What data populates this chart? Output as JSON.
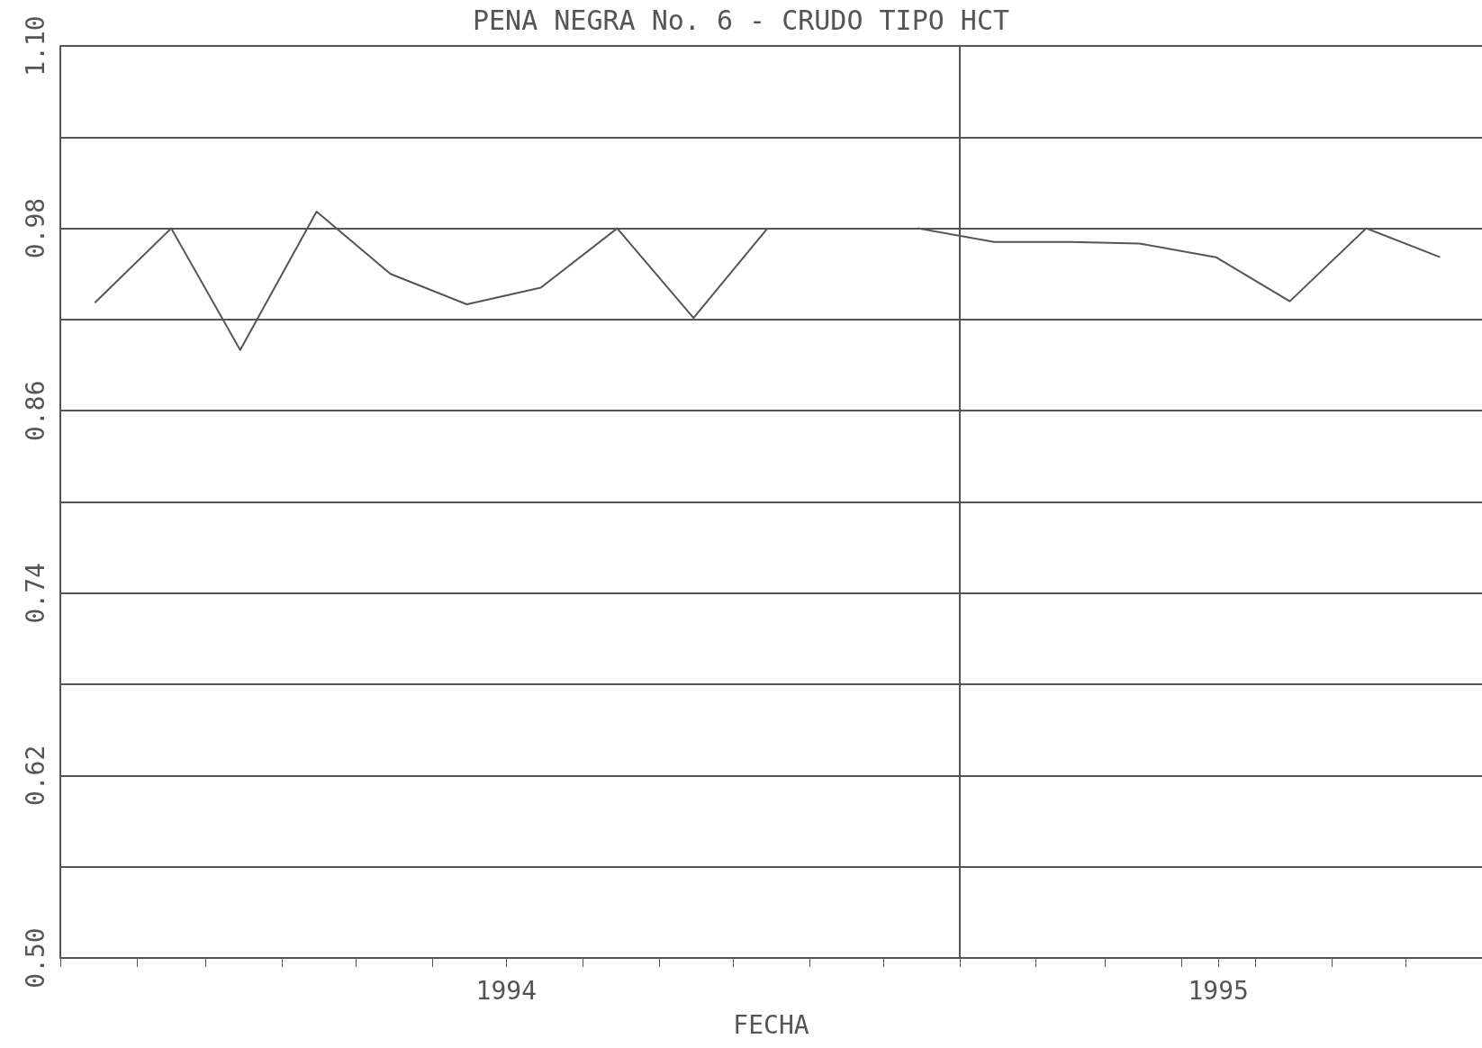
{
  "chart_data": {
    "type": "line",
    "title": "PENA NEGRA No. 6 - CRUDO TIPO HCT",
    "xlabel": "FECHA",
    "x": [
      "1994-01-15",
      "1994-02-15",
      "1994-03-15",
      "1994-04-15",
      "1994-05-15",
      "1994-06-15",
      "1994-07-15",
      "1994-08-15",
      "1994-09-15",
      "1994-10-15",
      "1994-11-15",
      "1994-12-15",
      "1995-01-15",
      "1995-02-15",
      "1995-03-15",
      "1995-04-15",
      "1995-05-15",
      "1995-06-15",
      "1995-07-15"
    ],
    "series": [
      {
        "color": "#555555",
        "values": [
          0.931,
          0.98,
          0.9,
          0.991,
          0.95,
          0.93,
          0.941,
          0.98,
          0.921,
          0.98,
          null,
          0.98,
          0.971,
          0.971,
          0.97,
          0.961,
          0.932,
          0.98,
          0.961
        ]
      }
    ],
    "xlim": [
      "1994-01-01",
      "1995-08-01"
    ],
    "xticks": [
      {
        "value": "1994-01-01",
        "label": null
      },
      {
        "value": "1994-02-01",
        "label": null
      },
      {
        "value": "1994-03-01",
        "label": null
      },
      {
        "value": "1994-04-01",
        "label": null
      },
      {
        "value": "1994-05-01",
        "label": null
      },
      {
        "value": "1994-06-01",
        "label": null
      },
      {
        "value": "1994-07-01",
        "label": "1994"
      },
      {
        "value": "1994-08-01",
        "label": null
      },
      {
        "value": "1994-09-01",
        "label": null
      },
      {
        "value": "1994-10-01",
        "label": null
      },
      {
        "value": "1994-11-01",
        "label": null
      },
      {
        "value": "1994-12-01",
        "label": null
      },
      {
        "value": "1995-01-01",
        "label": null
      },
      {
        "value": "1995-02-01",
        "label": null
      },
      {
        "value": "1995-03-01",
        "label": null
      },
      {
        "value": "1995-04-01",
        "label": null
      },
      {
        "value": "1995-04-16",
        "label": "1995"
      },
      {
        "value": "1995-05-01",
        "label": null
      },
      {
        "value": "1995-06-01",
        "label": null
      },
      {
        "value": "1995-07-01",
        "label": null
      },
      {
        "value": "1995-08-01",
        "label": null
      }
    ],
    "ylim": [
      0.5,
      1.1
    ],
    "yticks": [
      {
        "value": 0.5,
        "label": "0.50"
      },
      {
        "value": 0.56,
        "label": null
      },
      0.62,
      {
        "value": 0.68,
        "label": null
      },
      0.74,
      {
        "value": 0.8,
        "label": null
      },
      0.86,
      {
        "value": 0.92,
        "label": null
      },
      0.98,
      {
        "value": 1.04,
        "label": null
      },
      {
        "value": 1.1,
        "label": "1.10"
      }
    ],
    "ref_lines": [
      {
        "axis": "x",
        "value": "1995-01-01",
        "color": "#555555"
      }
    ],
    "grid": "y",
    "marker": "none",
    "line_style": "solid"
  }
}
